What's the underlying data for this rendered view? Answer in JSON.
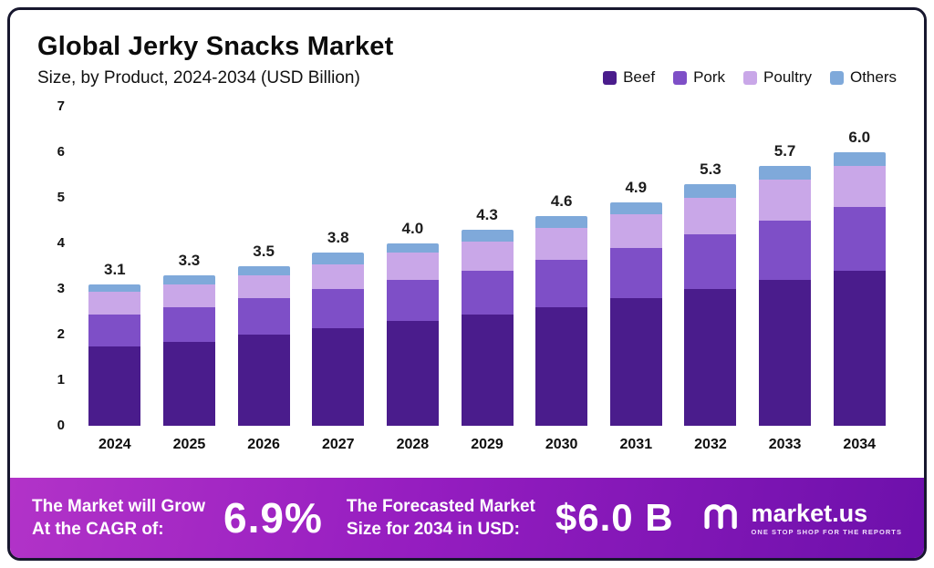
{
  "header": {
    "title": "Global Jerky Snacks Market",
    "subtitle": "Size, by Product, 2024-2034 (USD Billion)"
  },
  "chart_data": {
    "type": "bar",
    "stacked": true,
    "title": "Global Jerky Snacks Market Size, by Product, 2024-2034 (USD Billion)",
    "categories": [
      "2024",
      "2025",
      "2026",
      "2027",
      "2028",
      "2029",
      "2030",
      "2031",
      "2032",
      "2033",
      "2034"
    ],
    "series": [
      {
        "name": "Beef",
        "color": "#4a1c8c",
        "values": [
          1.75,
          1.85,
          2.0,
          2.15,
          2.3,
          2.45,
          2.6,
          2.8,
          3.0,
          3.2,
          3.4
        ]
      },
      {
        "name": "Pork",
        "color": "#7e4fc7",
        "values": [
          0.7,
          0.75,
          0.8,
          0.85,
          0.9,
          0.95,
          1.05,
          1.1,
          1.2,
          1.3,
          1.4
        ]
      },
      {
        "name": "Poultry",
        "color": "#c9a7e8",
        "values": [
          0.5,
          0.5,
          0.5,
          0.55,
          0.6,
          0.65,
          0.7,
          0.75,
          0.8,
          0.9,
          0.9
        ]
      },
      {
        "name": "Others",
        "color": "#7fa9da",
        "values": [
          0.15,
          0.2,
          0.2,
          0.25,
          0.2,
          0.25,
          0.25,
          0.25,
          0.3,
          0.3,
          0.3
        ]
      }
    ],
    "totals": [
      "3.1",
      "3.3",
      "3.5",
      "3.8",
      "4.0",
      "4.3",
      "4.6",
      "4.9",
      "5.3",
      "5.7",
      "6.0"
    ],
    "ylim": [
      0,
      7
    ],
    "y_ticks": [
      0,
      1,
      2,
      3,
      4,
      5,
      6,
      7
    ],
    "xlabel": "",
    "ylabel": "",
    "grid": false,
    "legend_position": "top-right"
  },
  "banner": {
    "grow_label_line1": "The Market will Grow",
    "grow_label_line2": "At the CAGR of:",
    "cagr_value": "6.9%",
    "forecast_label_line1": "The Forecasted Market",
    "forecast_label_line2": "Size for 2034 in USD:",
    "forecast_value": "$6.0 B",
    "logo_text": "market.us",
    "logo_tagline": "ONE STOP SHOP FOR THE REPORTS"
  },
  "colors": {
    "banner_gradient_start": "#b233c8",
    "banner_gradient_end": "#6d10ab",
    "frame_border": "#17172e"
  }
}
